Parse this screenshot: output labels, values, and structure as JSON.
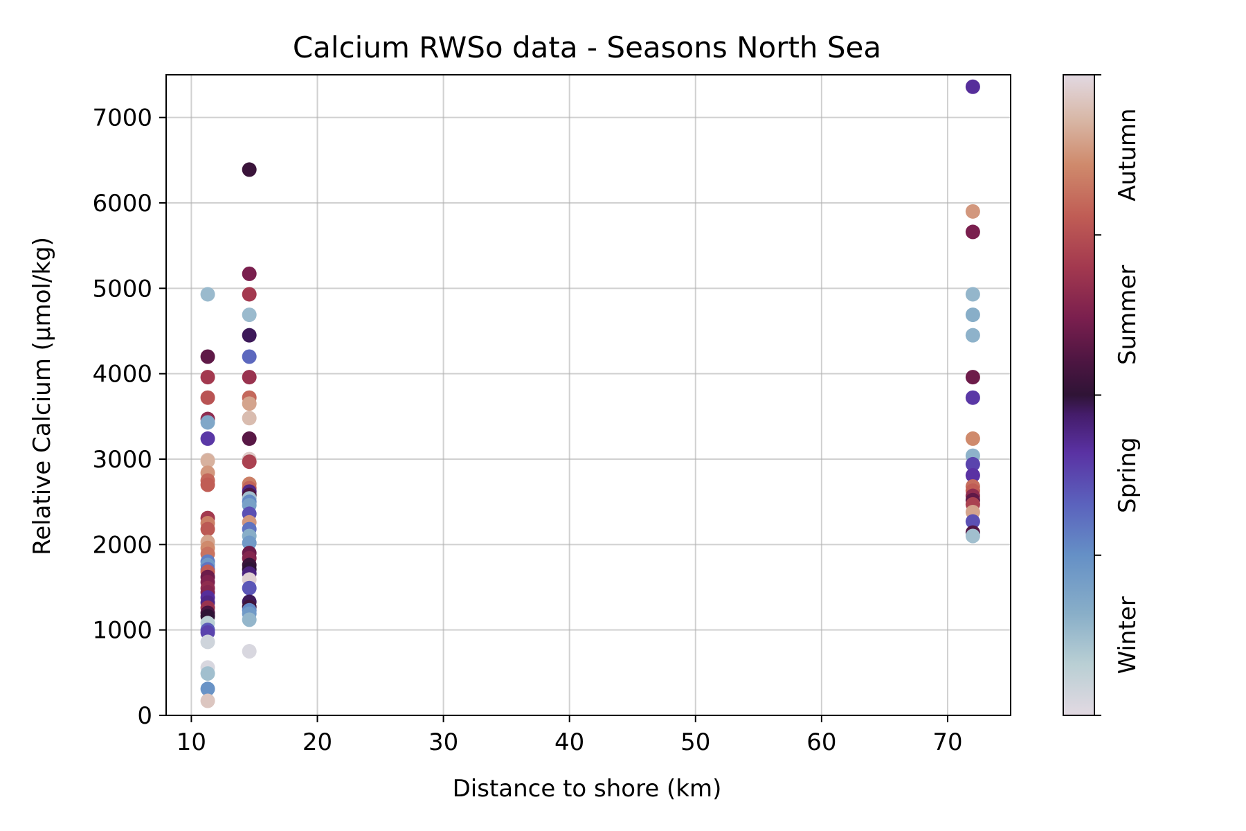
{
  "chart_data": {
    "type": "scatter",
    "title": "Calcium RWSo data - Seasons North Sea",
    "xlabel": "Distance to shore (km)",
    "ylabel": "Relative Calcium (µmol/kg)",
    "xlim": [
      8,
      75
    ],
    "ylim": [
      0,
      7500
    ],
    "xticks": [
      10,
      20,
      30,
      40,
      50,
      60,
      70
    ],
    "yticks": [
      0,
      1000,
      2000,
      3000,
      4000,
      5000,
      6000,
      7000
    ],
    "grid": true,
    "colorbar": {
      "colormap": "twilight",
      "range": [
        0,
        1
      ],
      "tick_positions": [
        0.0,
        0.25,
        0.5,
        0.75,
        1.0
      ],
      "labels": [
        {
          "text": "Winter",
          "position": 0.125
        },
        {
          "text": "Spring",
          "position": 0.375
        },
        {
          "text": "Summer",
          "position": 0.625
        },
        {
          "text": "Autumn",
          "position": 0.875
        }
      ],
      "color_stops": [
        {
          "pos": 0.0,
          "color": "#e2d9e2"
        },
        {
          "pos": 0.08,
          "color": "#b9cfd4"
        },
        {
          "pos": 0.16,
          "color": "#88aec8"
        },
        {
          "pos": 0.25,
          "color": "#6590c6"
        },
        {
          "pos": 0.33,
          "color": "#5b62bd"
        },
        {
          "pos": 0.41,
          "color": "#5a32a3"
        },
        {
          "pos": 0.47,
          "color": "#441c6a"
        },
        {
          "pos": 0.5,
          "color": "#2f1436"
        },
        {
          "pos": 0.55,
          "color": "#4b1541"
        },
        {
          "pos": 0.62,
          "color": "#7a1f4e"
        },
        {
          "pos": 0.7,
          "color": "#a3394f"
        },
        {
          "pos": 0.78,
          "color": "#c05d55"
        },
        {
          "pos": 0.86,
          "color": "#cf8a6c"
        },
        {
          "pos": 0.93,
          "color": "#d8b7a6"
        },
        {
          "pos": 1.0,
          "color": "#e2d9e2"
        }
      ]
    },
    "series": [
      {
        "x": 11.3,
        "points": [
          [
            4930,
            0.13
          ],
          [
            4200,
            0.58
          ],
          [
            3960,
            0.7
          ],
          [
            3720,
            0.76
          ],
          [
            3470,
            0.66
          ],
          [
            3430,
            0.18
          ],
          [
            3240,
            0.4
          ],
          [
            2990,
            0.96
          ],
          [
            2980,
            0.92
          ],
          [
            2840,
            0.88
          ],
          [
            2750,
            0.8
          ],
          [
            2700,
            0.78
          ],
          [
            2310,
            0.7
          ],
          [
            2250,
            0.84
          ],
          [
            2180,
            0.77
          ],
          [
            2030,
            0.9
          ],
          [
            1960,
            0.86
          ],
          [
            1890,
            0.82
          ],
          [
            1800,
            0.28
          ],
          [
            1760,
            0.22
          ],
          [
            1710,
            0.3
          ],
          [
            1680,
            0.78
          ],
          [
            1620,
            0.6
          ],
          [
            1560,
            0.63
          ],
          [
            1490,
            0.66
          ],
          [
            1440,
            0.64
          ],
          [
            1380,
            0.42
          ],
          [
            1320,
            0.44
          ],
          [
            1260,
            0.68
          ],
          [
            1200,
            0.55
          ],
          [
            1160,
            0.5
          ],
          [
            1080,
            0.08
          ],
          [
            1000,
            0.34
          ],
          [
            970,
            0.38
          ],
          [
            860,
            0.04
          ],
          [
            560,
            0.02
          ],
          [
            490,
            0.12
          ],
          [
            310,
            0.24
          ],
          [
            170,
            0.96
          ]
        ]
      },
      {
        "x": 14.6,
        "points": [
          [
            6390,
            0.52
          ],
          [
            5170,
            0.62
          ],
          [
            4930,
            0.7
          ],
          [
            4690,
            0.13
          ],
          [
            4450,
            0.48
          ],
          [
            4200,
            0.32
          ],
          [
            3960,
            0.68
          ],
          [
            3720,
            0.8
          ],
          [
            3650,
            0.9
          ],
          [
            3480,
            0.94
          ],
          [
            3240,
            0.57
          ],
          [
            3000,
            0.97
          ],
          [
            2970,
            0.72
          ],
          [
            2710,
            0.84
          ],
          [
            2660,
            0.79
          ],
          [
            2620,
            0.44
          ],
          [
            2580,
            0.55
          ],
          [
            2540,
            0.12
          ],
          [
            2500,
            0.26
          ],
          [
            2460,
            0.2
          ],
          [
            2360,
            0.36
          ],
          [
            2260,
            0.88
          ],
          [
            2180,
            0.3
          ],
          [
            2100,
            0.16
          ],
          [
            2020,
            0.22
          ],
          [
            1900,
            0.6
          ],
          [
            1840,
            0.64
          ],
          [
            1760,
            0.52
          ],
          [
            1710,
            0.5
          ],
          [
            1660,
            0.45
          ],
          [
            1590,
            0.98
          ],
          [
            1490,
            0.35
          ],
          [
            1330,
            0.48
          ],
          [
            1270,
            0.53
          ],
          [
            1230,
            0.26
          ],
          [
            1190,
            0.22
          ],
          [
            1120,
            0.14
          ],
          [
            750,
            0.02
          ]
        ]
      },
      {
        "x": 72.0,
        "points": [
          [
            7360,
            0.42
          ],
          [
            5900,
            0.88
          ],
          [
            5660,
            0.62
          ],
          [
            4930,
            0.14
          ],
          [
            4690,
            0.16
          ],
          [
            4450,
            0.15
          ],
          [
            3960,
            0.6
          ],
          [
            3720,
            0.4
          ],
          [
            3240,
            0.86
          ],
          [
            3040,
            0.15
          ],
          [
            2940,
            0.38
          ],
          [
            2810,
            0.41
          ],
          [
            2680,
            0.81
          ],
          [
            2630,
            0.78
          ],
          [
            2570,
            0.66
          ],
          [
            2520,
            0.58
          ],
          [
            2470,
            0.72
          ],
          [
            2380,
            0.9
          ],
          [
            2270,
            0.36
          ],
          [
            2140,
            0.56
          ],
          [
            2100,
            0.12
          ]
        ]
      }
    ]
  }
}
